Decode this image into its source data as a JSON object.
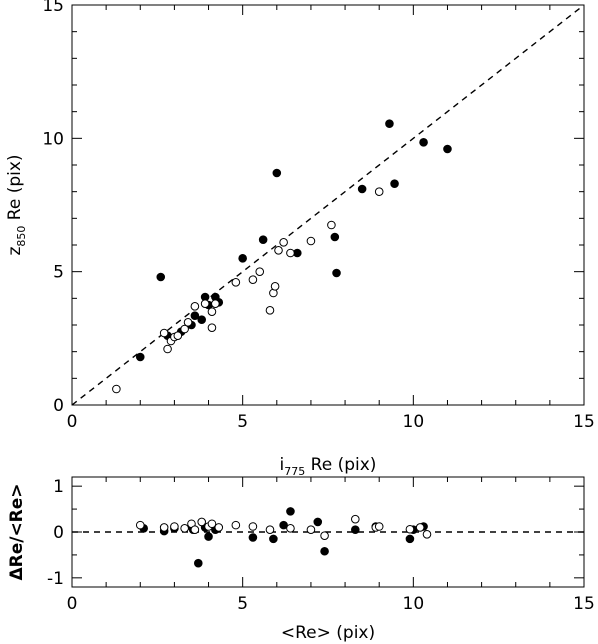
{
  "chart_data": [
    {
      "type": "scatter",
      "xlabel": {
        "main": "i",
        "sub": "775",
        "rest": " Re (pix)"
      },
      "ylabel": {
        "main": "z",
        "sub": "850",
        "rest": " Re (pix)"
      },
      "xlim": [
        0,
        15
      ],
      "ylim": [
        0,
        15
      ],
      "xticks": [
        "0",
        "5",
        "10",
        "15"
      ],
      "yticks": [
        "0",
        "5",
        "10",
        "15"
      ],
      "reference_line": "y = x (dashed)",
      "series": [
        {
          "marker": "filled-circle",
          "points": [
            [
              2.0,
              1.8
            ],
            [
              2.6,
              4.8
            ],
            [
              2.8,
              2.6
            ],
            [
              3.2,
              2.75
            ],
            [
              3.5,
              3.0
            ],
            [
              3.6,
              3.35
            ],
            [
              3.8,
              3.2
            ],
            [
              3.9,
              4.05
            ],
            [
              4.0,
              3.75
            ],
            [
              4.2,
              4.05
            ],
            [
              4.3,
              3.85
            ],
            [
              5.0,
              5.5
            ],
            [
              5.6,
              6.2
            ],
            [
              6.0,
              8.7
            ],
            [
              6.6,
              5.7
            ],
            [
              7.7,
              6.3
            ],
            [
              7.75,
              4.95
            ],
            [
              8.5,
              8.1
            ],
            [
              9.3,
              10.55
            ],
            [
              9.45,
              8.3
            ],
            [
              10.3,
              9.85
            ],
            [
              11.0,
              9.6
            ]
          ]
        },
        {
          "marker": "open-circle",
          "points": [
            [
              1.3,
              0.6
            ],
            [
              2.7,
              2.7
            ],
            [
              2.8,
              2.1
            ],
            [
              2.9,
              2.4
            ],
            [
              3.0,
              2.55
            ],
            [
              3.1,
              2.6
            ],
            [
              3.3,
              2.85
            ],
            [
              3.4,
              3.1
            ],
            [
              3.6,
              3.7
            ],
            [
              3.9,
              3.8
            ],
            [
              4.1,
              2.9
            ],
            [
              4.1,
              3.5
            ],
            [
              4.2,
              3.8
            ],
            [
              4.8,
              4.6
            ],
            [
              5.3,
              4.7
            ],
            [
              5.5,
              5.0
            ],
            [
              5.8,
              3.55
            ],
            [
              5.9,
              4.2
            ],
            [
              5.95,
              4.45
            ],
            [
              6.05,
              5.8
            ],
            [
              6.2,
              6.1
            ],
            [
              6.4,
              5.7
            ],
            [
              7.0,
              6.15
            ],
            [
              7.6,
              6.75
            ],
            [
              9.0,
              8.0
            ]
          ]
        }
      ]
    },
    {
      "type": "scatter",
      "xlabel": "<Re> (pix)",
      "ylabel": "ΔRe/<Re>",
      "xlim": [
        0,
        15
      ],
      "ylim": [
        -1.2,
        1.2
      ],
      "xticks": [
        "0",
        "5",
        "10",
        "15"
      ],
      "yticks": [
        "-1",
        "0",
        "1"
      ],
      "reference_line": "y = 0 (dashed)",
      "series": [
        {
          "marker": "filled-circle",
          "points": [
            [
              2.1,
              0.08
            ],
            [
              2.7,
              0.02
            ],
            [
              3.0,
              0.08
            ],
            [
              3.5,
              0.12
            ],
            [
              3.55,
              0.05
            ],
            [
              3.7,
              -0.68
            ],
            [
              3.9,
              0.1
            ],
            [
              4.0,
              -0.1
            ],
            [
              4.2,
              0.05
            ],
            [
              5.3,
              -0.12
            ],
            [
              5.9,
              -0.15
            ],
            [
              6.2,
              0.15
            ],
            [
              6.4,
              0.45
            ],
            [
              7.2,
              0.22
            ],
            [
              7.4,
              -0.42
            ],
            [
              8.3,
              0.05
            ],
            [
              8.9,
              0.12
            ],
            [
              9.9,
              -0.15
            ],
            [
              10.0,
              0.05
            ],
            [
              10.3,
              0.12
            ]
          ]
        },
        {
          "marker": "open-circle",
          "points": [
            [
              2.0,
              0.15
            ],
            [
              2.7,
              0.1
            ],
            [
              3.0,
              0.12
            ],
            [
              3.3,
              0.08
            ],
            [
              3.5,
              0.18
            ],
            [
              3.6,
              0.05
            ],
            [
              3.8,
              0.22
            ],
            [
              4.0,
              0.12
            ],
            [
              4.1,
              0.18
            ],
            [
              4.3,
              0.1
            ],
            [
              4.8,
              0.15
            ],
            [
              5.3,
              0.12
            ],
            [
              5.8,
              0.05
            ],
            [
              6.4,
              0.08
            ],
            [
              7.0,
              0.05
            ],
            [
              7.4,
              -0.08
            ],
            [
              8.3,
              0.28
            ],
            [
              8.9,
              0.1
            ],
            [
              9.0,
              0.12
            ],
            [
              9.9,
              0.06
            ],
            [
              10.2,
              0.1
            ],
            [
              10.4,
              -0.05
            ]
          ]
        }
      ]
    }
  ]
}
